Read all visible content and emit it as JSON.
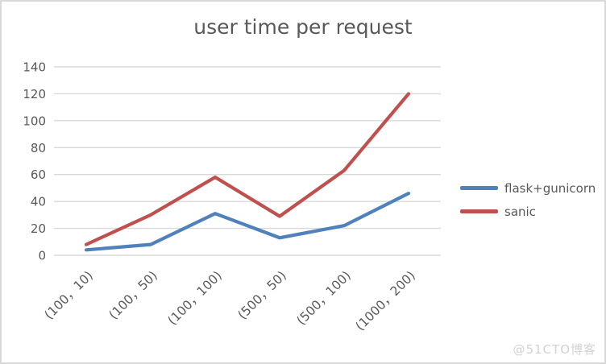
{
  "window": {
    "background": "#ffffff",
    "border_color": "#d9d9d9"
  },
  "watermark": "@51CTO博客",
  "chart_data": {
    "type": "line",
    "title": "user time per request",
    "categories": [
      "(100，10)",
      "(100，50)",
      "(100，100)",
      "(500，50)",
      "(500，100)",
      "(1000，200)"
    ],
    "series": [
      {
        "name": "flask+gunicorn",
        "color": "#4F81BD",
        "values": [
          4,
          8,
          31,
          13,
          22,
          46
        ]
      },
      {
        "name": "sanic",
        "color": "#C0504D",
        "values": [
          8,
          30,
          58,
          29,
          63,
          120
        ]
      }
    ],
    "xlabel": "",
    "ylabel": "",
    "ylim": [
      0,
      140
    ],
    "ytick_step": 20,
    "yticks": [
      0,
      20,
      40,
      60,
      80,
      100,
      120,
      140
    ],
    "grid": true,
    "gridline_color": "#d9d9d9",
    "tick_label_color": "#595959",
    "title_color": "#595959",
    "legend_position": "right",
    "x_label_rotation": -45
  }
}
